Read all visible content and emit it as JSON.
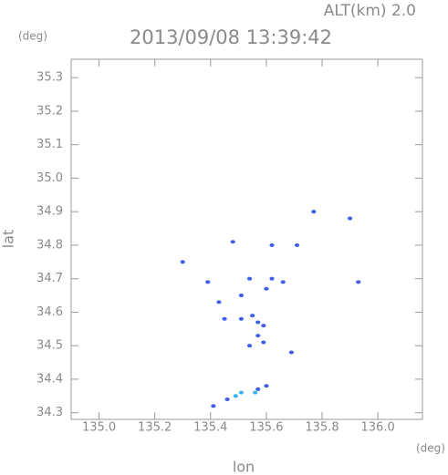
{
  "chart_data": {
    "type": "scatter",
    "title": "2013/09/08 13:39:42",
    "annotation": "ALT(km) 2.0",
    "xlabel": "lon",
    "ylabel": "lat",
    "x_unit": "(deg)",
    "y_unit": "(deg)",
    "xlim": [
      134.9,
      136.16
    ],
    "ylim": [
      34.28,
      35.355
    ],
    "xticks": [
      {
        "value": 135.0,
        "label": "135.0"
      },
      135.2,
      135.4,
      135.6,
      135.8,
      {
        "value": 136.0,
        "label": "136.0"
      }
    ],
    "yticks": [
      34.3,
      34.4,
      34.5,
      34.6,
      34.7,
      34.8,
      34.9,
      {
        "value": 35.0,
        "label": "35.0"
      },
      35.1,
      35.2,
      35.3
    ],
    "series": [
      {
        "color": "#3f5fe6",
        "x": [
          135.77,
          135.9,
          135.71,
          135.62,
          135.48,
          135.3,
          135.39,
          135.54,
          135.62,
          135.66,
          135.93,
          135.43,
          135.51,
          135.6,
          135.51,
          135.55,
          135.57,
          135.59,
          135.57,
          135.59,
          135.54,
          135.69,
          135.6,
          135.57,
          135.46,
          135.41,
          135.45
        ],
        "values": [
          34.9,
          34.88,
          34.8,
          34.8,
          34.81,
          34.75,
          34.69,
          34.7,
          34.7,
          34.69,
          34.69,
          34.63,
          34.65,
          34.67,
          34.58,
          34.59,
          34.57,
          34.56,
          34.53,
          34.51,
          34.5,
          34.48,
          34.38,
          34.37,
          34.34,
          34.32,
          34.58
        ]
      },
      {
        "color": "#38b4f0",
        "x": [
          135.51,
          135.49,
          135.56
        ],
        "values": [
          34.36,
          34.35,
          34.36
        ]
      }
    ]
  }
}
